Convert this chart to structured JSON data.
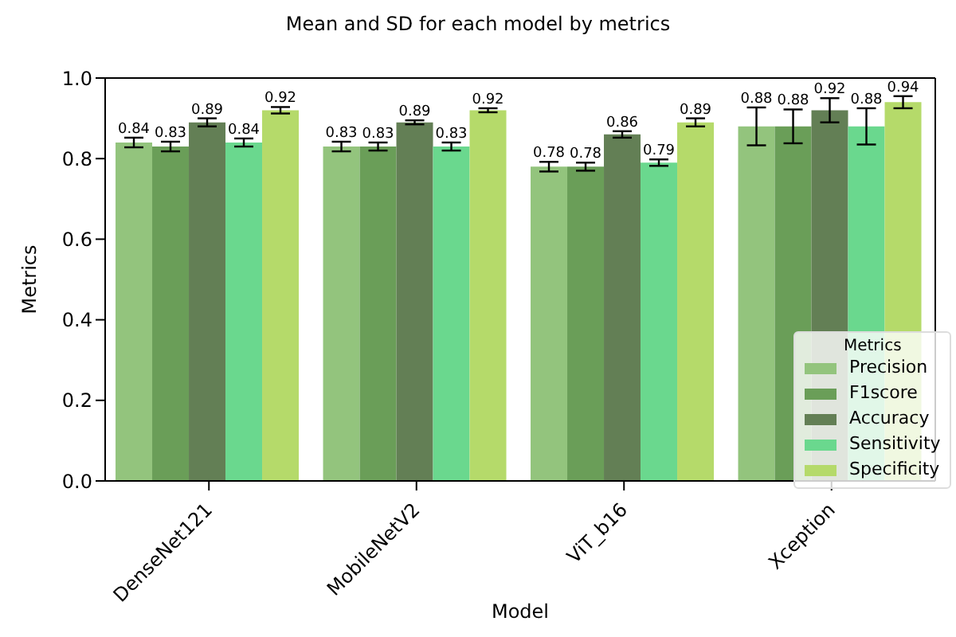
{
  "chart_data": {
    "type": "bar",
    "title": "Mean and SD for each model by metrics",
    "xlabel": "Model",
    "ylabel": "Metrics",
    "legend_title": "Metrics",
    "categories": [
      "DenseNet121",
      "MobileNetV2",
      "ViT_b16",
      "Xception"
    ],
    "series": [
      {
        "name": "Precision",
        "color": "#93c47d",
        "values": [
          0.84,
          0.83,
          0.78,
          0.88
        ],
        "errors": [
          0.012,
          0.012,
          0.012,
          0.047
        ]
      },
      {
        "name": "F1score",
        "color": "#6a9e58",
        "values": [
          0.83,
          0.83,
          0.78,
          0.88
        ],
        "errors": [
          0.012,
          0.01,
          0.01,
          0.042
        ]
      },
      {
        "name": "Accuracy",
        "color": "#637f55",
        "values": [
          0.89,
          0.89,
          0.86,
          0.92
        ],
        "errors": [
          0.01,
          0.005,
          0.008,
          0.03
        ]
      },
      {
        "name": "Sensitivity",
        "color": "#6ad88e",
        "values": [
          0.84,
          0.83,
          0.79,
          0.88
        ],
        "errors": [
          0.01,
          0.01,
          0.008,
          0.045
        ]
      },
      {
        "name": "Specificity",
        "color": "#b5da6a",
        "values": [
          0.92,
          0.92,
          0.89,
          0.94
        ],
        "errors": [
          0.008,
          0.005,
          0.01,
          0.015
        ]
      }
    ],
    "ylim": [
      0,
      1
    ],
    "yticks": [
      {
        "value": 0,
        "label": "0.0"
      },
      0.2,
      0.4,
      0.6,
      0.8,
      {
        "value": 1,
        "label": "1.0"
      }
    ],
    "data_labels": true,
    "legend": "bottom right",
    "grid": false
  }
}
